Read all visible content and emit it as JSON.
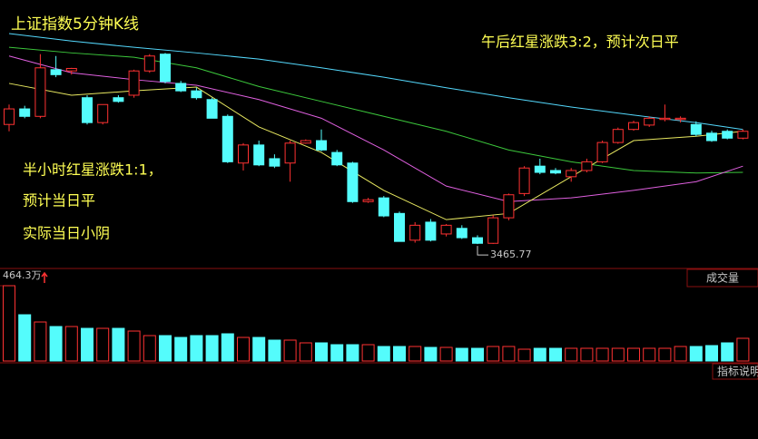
{
  "chart_data": {
    "type": "candlestick",
    "title": "上证指数5分钟K线",
    "annotations": [
      "午后红星涨跌3:2，预计次日平",
      "半小时红星涨跌1:1，",
      "预计当日平",
      "实际当日小阴"
    ],
    "ylim": [
      3462,
      3505
    ],
    "up_color": "#ff3232",
    "down_color": "#54fcfc",
    "ohlc": [
      [
        3485.0,
        3488.2,
        3483.9,
        3487.5
      ],
      [
        3487.5,
        3488.0,
        3486.0,
        3486.3
      ],
      [
        3486.3,
        3496.3,
        3486.0,
        3494.1
      ],
      [
        3493.8,
        3496.0,
        3492.6,
        3493.0
      ],
      [
        3493.6,
        3494.1,
        3493.0,
        3494.0
      ],
      [
        3489.3,
        3489.7,
        3485.0,
        3485.3
      ],
      [
        3485.3,
        3488.2,
        3485.0,
        3488.2
      ],
      [
        3489.3,
        3489.7,
        3488.5,
        3488.7
      ],
      [
        3489.7,
        3493.8,
        3489.3,
        3493.6
      ],
      [
        3493.6,
        3496.3,
        3493.3,
        3496.0
      ],
      [
        3496.3,
        3496.5,
        3491.6,
        3491.9
      ],
      [
        3491.6,
        3492.0,
        3490.2,
        3490.4
      ],
      [
        3490.4,
        3490.9,
        3489.0,
        3489.3
      ],
      [
        3489.0,
        3489.3,
        3486.0,
        3486.0
      ],
      [
        3486.3,
        3486.6,
        3478.8,
        3479.0
      ],
      [
        3478.8,
        3482.0,
        3477.6,
        3481.7
      ],
      [
        3481.7,
        3482.4,
        3478.3,
        3478.5
      ],
      [
        3479.5,
        3480.2,
        3478.0,
        3478.3
      ],
      [
        3478.8,
        3482.4,
        3475.8,
        3482.0
      ],
      [
        3482.0,
        3482.6,
        3481.9,
        3482.4
      ],
      [
        3482.4,
        3484.2,
        3480.7,
        3480.9
      ],
      [
        3480.5,
        3480.9,
        3478.3,
        3478.5
      ],
      [
        3478.8,
        3479.0,
        3472.4,
        3472.6
      ],
      [
        3472.6,
        3473.2,
        3472.4,
        3472.9
      ],
      [
        3473.2,
        3473.5,
        3470.1,
        3470.3
      ],
      [
        3470.7,
        3471.0,
        3466.2,
        3466.2
      ],
      [
        3466.4,
        3469.3,
        3466.0,
        3468.8
      ],
      [
        3469.3,
        3469.8,
        3466.2,
        3466.4
      ],
      [
        3467.4,
        3469.0,
        3467.0,
        3468.8
      ],
      [
        3468.3,
        3468.8,
        3466.6,
        3466.8
      ],
      [
        3466.8,
        3467.2,
        3465.77,
        3465.9
      ],
      [
        3465.9,
        3470.4,
        3465.8,
        3470.0
      ],
      [
        3470.0,
        3473.9,
        3469.6,
        3473.7
      ],
      [
        3473.9,
        3478.3,
        3473.5,
        3478.0
      ],
      [
        3478.3,
        3479.5,
        3477.0,
        3477.3
      ],
      [
        3477.6,
        3478.0,
        3477.0,
        3477.2
      ],
      [
        3476.6,
        3478.0,
        3475.8,
        3477.6
      ],
      [
        3477.6,
        3479.5,
        3477.3,
        3479.0
      ],
      [
        3479.0,
        3482.4,
        3478.8,
        3482.1
      ],
      [
        3482.1,
        3484.5,
        3481.9,
        3484.2
      ],
      [
        3484.2,
        3485.6,
        3484.0,
        3485.3
      ],
      [
        3484.9,
        3486.3,
        3484.6,
        3486.0
      ],
      [
        3485.8,
        3488.2,
        3485.5,
        3486.0
      ],
      [
        3485.8,
        3486.3,
        3485.3,
        3486.0
      ],
      [
        3485.0,
        3485.5,
        3483.1,
        3483.4
      ],
      [
        3483.6,
        3484.0,
        3482.2,
        3482.4
      ],
      [
        3483.9,
        3484.2,
        3482.6,
        3482.8
      ],
      [
        3482.8,
        3484.2,
        3482.6,
        3483.9
      ]
    ],
    "ma_x": [
      1,
      5,
      9,
      13,
      17,
      21,
      25,
      29,
      33,
      37,
      41,
      45,
      48
    ],
    "ma_lines": [
      {
        "color": "#54d8fc",
        "values": [
          3499.6,
          3498.4,
          3497.4,
          3496.5,
          3495.5,
          3494.1,
          3492.6,
          3490.9,
          3489.3,
          3487.8,
          3486.5,
          3485.3,
          3484.2
        ]
      },
      {
        "color": "#3cc83c",
        "values": [
          3497.4,
          3496.5,
          3495.8,
          3494.1,
          3491.1,
          3488.7,
          3486.3,
          3483.9,
          3480.9,
          3479.0,
          3477.6,
          3477.2,
          3477.3
        ]
      },
      {
        "color": "#e060e0",
        "values": [
          3496.0,
          3493.3,
          3492.2,
          3491.3,
          3489.0,
          3486.0,
          3480.9,
          3475.1,
          3472.6,
          3473.2,
          3474.4,
          3475.8,
          3478.3
        ]
      },
      {
        "color": "#e8e860",
        "values": [
          3491.6,
          3489.7,
          3490.4,
          3491.0,
          3484.6,
          3480.5,
          3474.4,
          3469.7,
          3470.7,
          3476.6,
          3482.4,
          3483.1,
          3483.9
        ]
      }
    ],
    "volume": {
      "title": "成交量",
      "ylim": [
        0,
        464.3
      ],
      "yticks": [
        {
          "value": 464.3,
          "label": "464.3万"
        }
      ],
      "values": [
        464.3,
        285.3,
        240.5,
        212.6,
        212.6,
        201.4,
        201.4,
        201.4,
        184.6,
        156.6,
        156.6,
        145.4,
        156.6,
        156.6,
        167.8,
        145.4,
        145.4,
        128.7,
        128.7,
        111.9,
        111.9,
        100.7,
        100.7,
        100.7,
        89.5,
        89.5,
        89.5,
        83.9,
        83.9,
        78.3,
        78.3,
        89.5,
        89.5,
        72.7,
        78.3,
        78.3,
        78.3,
        78.3,
        78.3,
        78.3,
        78.3,
        78.3,
        78.3,
        89.5,
        89.5,
        95.1,
        111.9,
        139.9
      ]
    },
    "indicator_button": "指标说明"
  }
}
